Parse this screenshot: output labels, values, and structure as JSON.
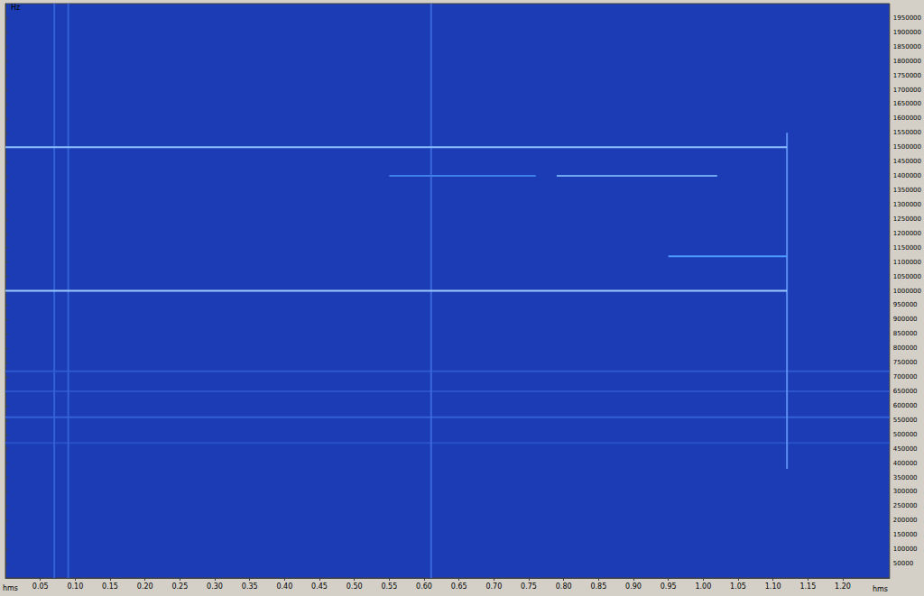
{
  "chart_data": {
    "type": "line",
    "xlabel": "hms",
    "ylabel": "Hz",
    "xlim": [
      0,
      1.267
    ],
    "ylim": [
      0,
      2000000
    ],
    "xticks": [
      0.05,
      {
        "value": 0.1,
        "label": "0.10"
      },
      0.15,
      {
        "value": 0.2,
        "label": "0.20"
      },
      0.25,
      {
        "value": 0.3,
        "label": "0.30"
      },
      0.35,
      {
        "value": 0.4,
        "label": "0.40"
      },
      0.45,
      {
        "value": 0.5,
        "label": "0.50"
      },
      0.55,
      {
        "value": 0.6,
        "label": "0.60"
      },
      0.65,
      {
        "value": 0.7,
        "label": "0.70"
      },
      0.75,
      {
        "value": 0.8,
        "label": "0.80"
      },
      0.85,
      {
        "value": 0.9,
        "label": "0.90"
      },
      0.95,
      {
        "value": 1.0,
        "label": "1.00"
      },
      1.05,
      {
        "value": 1.1,
        "label": "1.10"
      },
      1.15,
      {
        "value": 1.2,
        "label": "1.20"
      }
    ],
    "yticks": [
      50000,
      100000,
      150000,
      200000,
      250000,
      300000,
      350000,
      400000,
      450000,
      500000,
      550000,
      600000,
      650000,
      700000,
      750000,
      800000,
      850000,
      900000,
      950000,
      1000000,
      1050000,
      1100000,
      1150000,
      1200000,
      1250000,
      1300000,
      1350000,
      1400000,
      1450000,
      1500000,
      1550000,
      1600000,
      1650000,
      1700000,
      1750000,
      1800000,
      1850000,
      1900000,
      1950000
    ],
    "grid": false,
    "series": [
      {
        "color": "#3560d4",
        "x": [
          0,
          1.267
        ],
        "values": [
          560000,
          560000
        ]
      },
      {
        "color": "#2f58cc",
        "x": [
          0,
          1.267
        ],
        "values": [
          720000,
          720000
        ]
      },
      {
        "color": "#2c54c8",
        "x": [
          0,
          1.267
        ],
        "values": [
          650000,
          650000
        ]
      },
      {
        "color": "#2a52c4",
        "x": [
          0,
          1.267
        ],
        "values": [
          470000,
          470000
        ]
      },
      {
        "color": "#3a68da",
        "x": [
          0.61,
          0.61
        ],
        "values": [
          0,
          2000000
        ]
      },
      {
        "color": "#3462d6",
        "x": [
          0.07,
          0.07
        ],
        "values": [
          0,
          2000000
        ]
      },
      {
        "color": "#3462d6",
        "x": [
          0.09,
          0.09
        ],
        "values": [
          0,
          2000000
        ]
      },
      {
        "color": "#5a8ef0",
        "x": [
          1.12,
          1.12
        ],
        "values": [
          380000,
          1550000
        ]
      },
      {
        "color": "#8cc0ff",
        "x": [
          0,
          1.12
        ],
        "values": [
          1500000,
          1500000
        ]
      },
      {
        "color": "#9ccaff",
        "x": [
          0,
          1.12
        ],
        "values": [
          1000000,
          1000000
        ]
      },
      {
        "color": "#3f7fe8",
        "x": [
          0.55,
          0.76
        ],
        "values": [
          1400000,
          1400000
        ]
      },
      {
        "color": "#6fa8f0",
        "x": [
          0.79,
          1.02
        ],
        "values": [
          1400000,
          1400000
        ]
      },
      {
        "color": "#4b9bff",
        "x": [
          0.95,
          1.12
        ],
        "values": [
          1120000,
          1120000
        ]
      }
    ]
  }
}
